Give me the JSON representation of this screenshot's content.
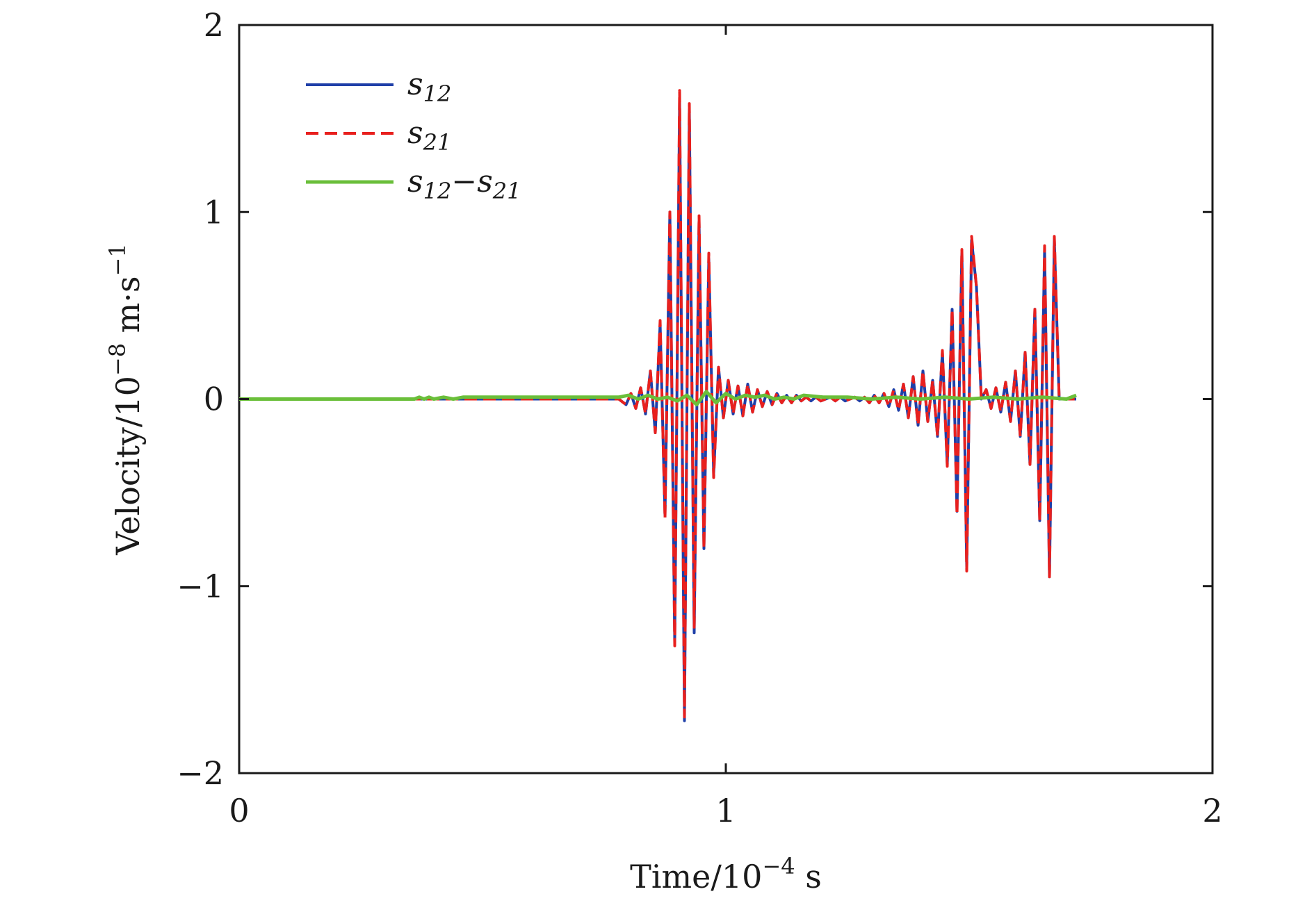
{
  "chart_data": {
    "type": "line",
    "xlabel": {
      "base": "Time/10",
      "exp": "−4",
      "unit": " s"
    },
    "ylabel": {
      "base": "Velocity/10",
      "exp": "−8",
      "unit": " m·s",
      "unit_exp": "−1"
    },
    "xlim": [
      0,
      2
    ],
    "ylim": [
      -2,
      2
    ],
    "x_ticks": [
      0,
      1,
      2
    ],
    "x_tick_labels": [
      "0",
      "1",
      "2"
    ],
    "y_ticks": [
      -2,
      -1,
      0,
      1,
      2
    ],
    "y_tick_labels": [
      "−2",
      "−1",
      "0",
      "1",
      "2"
    ],
    "grid": false,
    "legend_position": "top-left",
    "series": [
      {
        "name": "s12",
        "name_parts": {
          "base": "s",
          "sub": "12"
        },
        "color": "#1f3fa8",
        "style": "solid",
        "x": [
          0,
          0.78,
          0.795,
          0.805,
          0.815,
          0.825,
          0.835,
          0.845,
          0.855,
          0.865,
          0.875,
          0.885,
          0.895,
          0.905,
          0.915,
          0.925,
          0.935,
          0.945,
          0.955,
          0.965,
          0.975,
          0.985,
          0.995,
          1.005,
          1.015,
          1.025,
          1.035,
          1.045,
          1.055,
          1.065,
          1.075,
          1.085,
          1.095,
          1.105,
          1.115,
          1.125,
          1.135,
          1.145,
          1.155,
          1.165,
          1.175,
          1.185,
          1.195,
          1.205,
          1.215,
          1.225,
          1.235,
          1.245,
          1.255,
          1.265,
          1.275,
          1.285,
          1.295,
          1.305,
          1.315,
          1.325,
          1.335,
          1.345,
          1.355,
          1.365,
          1.375,
          1.385,
          1.395,
          1.405,
          1.415,
          1.425,
          1.435,
          1.445,
          1.455,
          1.465,
          1.475,
          1.485,
          1.495,
          1.505,
          1.515,
          1.525,
          1.535,
          1.545,
          1.555,
          1.565,
          1.575,
          1.585,
          1.595,
          1.605,
          1.615,
          1.625,
          1.635,
          1.645,
          1.655,
          1.665,
          1.675,
          1.685,
          1.695,
          1.705,
          1.715,
          1.72
        ],
        "values": [
          0,
          0,
          -0.03,
          0.03,
          -0.05,
          0.06,
          -0.08,
          0.15,
          -0.18,
          0.4,
          -0.62,
          1.0,
          -1.3,
          1.6,
          -1.72,
          1.55,
          -1.25,
          0.95,
          -0.8,
          0.75,
          -0.4,
          0.17,
          -0.1,
          0.1,
          -0.08,
          0.07,
          -0.09,
          0.08,
          -0.07,
          0.05,
          -0.04,
          0.04,
          -0.03,
          0.03,
          -0.02,
          0.02,
          -0.02,
          0.02,
          -0.01,
          0.01,
          -0.01,
          0.01,
          -0.01,
          0.0,
          0.01,
          -0.01,
          0.01,
          -0.01,
          0.0,
          0.01,
          -0.01,
          0.01,
          -0.02,
          0.02,
          -0.02,
          0.03,
          -0.04,
          0.05,
          -0.06,
          0.08,
          -0.1,
          0.12,
          -0.14,
          0.15,
          -0.12,
          0.1,
          -0.2,
          0.25,
          -0.35,
          0.48,
          -0.6,
          0.78,
          -0.9,
          0.85,
          0.6,
          0.0,
          0.05,
          -0.05,
          0.06,
          -0.07,
          0.09,
          -0.12,
          0.15,
          -0.2,
          0.25,
          -0.35,
          0.48,
          -0.65,
          0.8,
          -0.95,
          0.85,
          0.0,
          0.0,
          0.0,
          0.0,
          0.0
        ]
      },
      {
        "name": "s21",
        "name_parts": {
          "base": "s",
          "sub": "21"
        },
        "color": "#e8201e",
        "style": "dashed",
        "x": [
          0,
          0.78,
          0.795,
          0.805,
          0.815,
          0.825,
          0.835,
          0.845,
          0.855,
          0.865,
          0.875,
          0.885,
          0.895,
          0.905,
          0.915,
          0.925,
          0.935,
          0.945,
          0.955,
          0.965,
          0.975,
          0.985,
          0.995,
          1.005,
          1.015,
          1.025,
          1.035,
          1.045,
          1.055,
          1.065,
          1.075,
          1.085,
          1.095,
          1.105,
          1.115,
          1.125,
          1.135,
          1.145,
          1.155,
          1.165,
          1.175,
          1.185,
          1.195,
          1.205,
          1.215,
          1.225,
          1.235,
          1.245,
          1.255,
          1.265,
          1.275,
          1.285,
          1.295,
          1.305,
          1.315,
          1.325,
          1.335,
          1.345,
          1.355,
          1.365,
          1.375,
          1.385,
          1.395,
          1.405,
          1.415,
          1.425,
          1.435,
          1.445,
          1.455,
          1.465,
          1.475,
          1.485,
          1.495,
          1.505,
          1.515,
          1.525,
          1.535,
          1.545,
          1.555,
          1.565,
          1.575,
          1.585,
          1.595,
          1.605,
          1.615,
          1.625,
          1.635,
          1.645,
          1.655,
          1.665,
          1.675,
          1.685,
          1.695,
          1.705,
          1.715,
          1.72
        ],
        "values": [
          0,
          0,
          -0.03,
          0.03,
          -0.05,
          0.06,
          -0.08,
          0.15,
          -0.18,
          0.42,
          -0.64,
          1.0,
          -1.32,
          1.65,
          -1.7,
          1.58,
          -1.22,
          0.98,
          -0.8,
          0.78,
          -0.42,
          0.17,
          -0.1,
          0.1,
          -0.08,
          0.07,
          -0.09,
          0.08,
          -0.07,
          0.05,
          -0.04,
          0.04,
          -0.03,
          0.03,
          -0.02,
          0.02,
          -0.02,
          0.02,
          -0.01,
          0.01,
          -0.01,
          0.01,
          -0.01,
          0.0,
          0.01,
          -0.01,
          0.01,
          -0.01,
          0.0,
          0.01,
          -0.01,
          0.01,
          -0.02,
          0.02,
          -0.02,
          0.03,
          -0.04,
          0.05,
          -0.06,
          0.08,
          -0.1,
          0.12,
          -0.14,
          0.15,
          -0.12,
          0.1,
          -0.2,
          0.26,
          -0.36,
          0.48,
          -0.62,
          0.8,
          -0.92,
          0.87,
          0.6,
          0.0,
          0.05,
          -0.05,
          0.06,
          -0.07,
          0.09,
          -0.12,
          0.15,
          -0.2,
          0.25,
          -0.35,
          0.48,
          -0.65,
          0.82,
          -0.95,
          0.87,
          0.0,
          0.0,
          0.0,
          0.0,
          0.0
        ]
      },
      {
        "name": "s12−s21",
        "name_parts": {
          "base": "s",
          "sub": "12",
          "op": "−",
          "base2": "s",
          "sub2": "21"
        },
        "color": "#6abf3a",
        "style": "solid",
        "x": [
          0,
          0.36,
          0.37,
          0.38,
          0.39,
          0.4,
          0.42,
          0.44,
          0.46,
          0.5,
          0.6,
          0.7,
          0.78,
          0.8,
          0.82,
          0.84,
          0.86,
          0.88,
          0.9,
          0.92,
          0.94,
          0.96,
          0.98,
          1.0,
          1.02,
          1.04,
          1.06,
          1.08,
          1.1,
          1.12,
          1.14,
          1.16,
          1.2,
          1.25,
          1.3,
          1.35,
          1.4,
          1.45,
          1.5,
          1.55,
          1.6,
          1.65,
          1.7,
          1.72
        ],
        "values": [
          0,
          0,
          0.01,
          0.0,
          0.01,
          0.0,
          0.01,
          0.0,
          0.01,
          0.01,
          0.01,
          0.01,
          0.01,
          0.02,
          0.0,
          0.02,
          0.0,
          0.01,
          -0.01,
          0.02,
          -0.03,
          0.04,
          -0.02,
          0.03,
          0.0,
          0.02,
          0.01,
          0.02,
          0.0,
          0.01,
          0.0,
          0.02,
          0.01,
          0.01,
          0.0,
          0.01,
          0.0,
          0.01,
          0.0,
          0.01,
          0.0,
          0.01,
          0.0,
          0.02
        ]
      }
    ]
  }
}
